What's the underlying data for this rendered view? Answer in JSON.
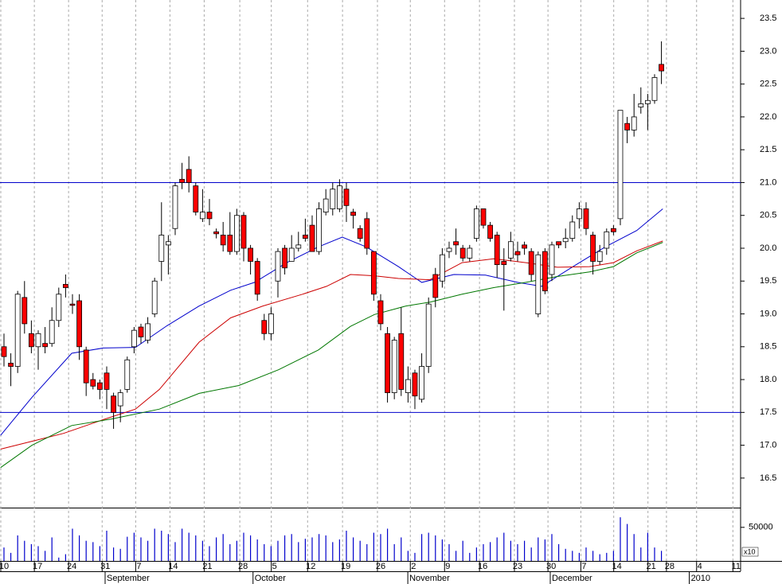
{
  "chart_data": [
    {
      "type": "candlestick",
      "x": [
        0,
        1,
        2,
        3,
        4,
        5,
        6,
        7,
        8,
        9,
        10,
        11,
        12,
        13,
        14,
        15,
        16,
        17,
        18,
        19,
        20,
        21,
        22,
        23,
        24,
        25,
        26,
        27,
        28,
        29,
        30,
        31,
        32,
        33,
        34,
        35,
        36,
        37,
        38,
        39,
        40,
        41,
        42,
        43,
        44,
        45,
        46,
        47,
        48,
        49,
        50,
        51,
        52,
        53,
        54,
        55,
        56,
        57,
        58,
        59,
        60,
        61,
        62,
        63,
        64,
        65,
        66,
        67,
        68,
        69,
        70,
        71,
        72,
        73,
        74,
        75,
        76,
        77,
        78,
        79,
        80,
        81,
        82,
        83,
        84,
        85,
        86,
        87,
        88,
        89,
        90,
        91,
        92,
        93,
        94,
        95,
        96
      ],
      "open": [
        18.5,
        18.25,
        18.2,
        19.25,
        18.7,
        18.5,
        18.55,
        18.55,
        18.9,
        19.45,
        19.15,
        19.2,
        18.45,
        18.0,
        17.95,
        18.1,
        17.75,
        17.6,
        17.85,
        18.5,
        18.8,
        18.6,
        19.0,
        19.8,
        20.05,
        20.3,
        21.05,
        21.2,
        20.95,
        20.45,
        20.55,
        20.25,
        20.2,
        20.2,
        19.95,
        20.5,
        20.0,
        19.8,
        18.9,
        18.7,
        19.5,
        20.0,
        19.8,
        20.0,
        20.2,
        20.35,
        19.95,
        20.55,
        20.6,
        20.6,
        20.9,
        20.55,
        20.3,
        20.45,
        19.95,
        19.2,
        18.7,
        17.8,
        18.7,
        17.8,
        18.1,
        17.7,
        18.2,
        19.6,
        19.5,
        19.95,
        20.1,
        20.0,
        19.85,
        20.15,
        20.6,
        20.35,
        20.2,
        19.8,
        19.85,
        19.95,
        20.05,
        19.95,
        19.0,
        19.95,
        19.6,
        20.1,
        20.1,
        20.15,
        20.45,
        20.6,
        20.2,
        19.8,
        20.0,
        20.3,
        20.45,
        21.9,
        21.8,
        22.15,
        22.2,
        22.25,
        22.8
      ],
      "high": [
        18.7,
        18.4,
        19.35,
        19.5,
        18.9,
        18.75,
        18.8,
        19.1,
        19.4,
        19.6,
        19.3,
        19.3,
        18.5,
        18.1,
        18.0,
        18.2,
        17.8,
        17.85,
        18.35,
        18.8,
        18.85,
        18.95,
        19.55,
        20.7,
        20.2,
        21.0,
        21.3,
        21.4,
        21.0,
        20.9,
        20.75,
        20.3,
        20.4,
        20.55,
        20.6,
        20.55,
        20.05,
        19.85,
        19.0,
        19.1,
        20.0,
        20.05,
        20.2,
        20.25,
        20.45,
        20.5,
        20.7,
        20.9,
        21.0,
        21.05,
        21.0,
        20.6,
        20.35,
        20.55,
        19.95,
        19.3,
        18.8,
        18.65,
        19.1,
        18.2,
        18.15,
        18.4,
        19.25,
        19.7,
        20.0,
        20.1,
        20.3,
        20.05,
        20.05,
        20.65,
        20.6,
        20.4,
        20.25,
        20.0,
        20.25,
        20.1,
        20.1,
        20.0,
        19.95,
        20.0,
        20.1,
        20.1,
        20.3,
        20.5,
        20.7,
        20.7,
        20.25,
        20.05,
        20.3,
        20.35,
        22.1,
        22.0,
        22.35,
        22.45,
        22.35,
        22.65,
        23.15
      ],
      "low": [
        18.2,
        17.9,
        18.1,
        18.7,
        18.4,
        18.15,
        18.4,
        18.5,
        18.8,
        19.25,
        19.0,
        18.3,
        17.75,
        17.85,
        17.7,
        17.55,
        17.25,
        17.35,
        17.8,
        18.4,
        18.55,
        18.55,
        18.95,
        19.5,
        19.6,
        20.2,
        20.9,
        20.85,
        20.5,
        20.4,
        20.35,
        20.15,
        19.95,
        19.9,
        19.9,
        19.8,
        19.6,
        19.2,
        18.6,
        18.6,
        19.25,
        19.6,
        19.8,
        19.95,
        20.1,
        19.95,
        19.9,
        20.5,
        20.5,
        20.55,
        20.4,
        20.3,
        20.1,
        19.9,
        19.2,
        18.75,
        17.65,
        17.7,
        17.75,
        17.65,
        17.55,
        17.65,
        18.1,
        19.1,
        19.4,
        19.85,
        19.9,
        19.8,
        19.8,
        20.1,
        20.3,
        20.1,
        19.55,
        19.05,
        19.8,
        19.8,
        19.9,
        19.5,
        18.95,
        19.3,
        19.5,
        20.0,
        20.0,
        20.1,
        20.3,
        20.2,
        19.6,
        19.75,
        19.9,
        20.2,
        20.35,
        21.6,
        21.7,
        22.05,
        21.8,
        22.2,
        22.5
      ],
      "close": [
        18.35,
        18.2,
        19.3,
        18.85,
        18.5,
        18.7,
        18.5,
        18.9,
        19.3,
        19.4,
        19.13,
        18.5,
        17.95,
        17.9,
        17.85,
        17.85,
        17.5,
        17.8,
        18.3,
        18.75,
        18.65,
        18.85,
        19.5,
        20.2,
        20.1,
        20.95,
        21.0,
        21.0,
        20.55,
        20.55,
        20.45,
        20.22,
        20.05,
        19.95,
        20.5,
        20.0,
        19.8,
        19.3,
        18.7,
        19.0,
        19.95,
        19.7,
        20.0,
        20.05,
        20.15,
        19.95,
        20.6,
        20.75,
        20.9,
        20.95,
        20.65,
        20.5,
        20.15,
        20.0,
        19.3,
        18.85,
        17.8,
        18.6,
        17.85,
        18.0,
        17.75,
        18.2,
        19.15,
        19.25,
        19.9,
        20.0,
        20.05,
        19.85,
        20.0,
        20.6,
        20.35,
        20.15,
        19.75,
        19.75,
        20.1,
        19.9,
        20.0,
        19.6,
        19.9,
        19.35,
        20.05,
        20.05,
        20.15,
        20.4,
        20.6,
        20.3,
        19.8,
        19.95,
        20.25,
        20.25,
        22.1,
        21.8,
        22.0,
        22.2,
        22.25,
        22.6,
        22.7
      ],
      "up_color": "#ffffff",
      "down_color": "#ff0000",
      "lines": [
        {
          "color": "#0000cc",
          "x": [
            -0.5,
            4.1,
            9.9,
            14.5,
            19.2,
            23.8,
            28.5,
            33.1,
            36.6,
            41.3,
            45.9,
            49.4,
            52.9,
            57.6,
            61,
            65.7,
            70.3,
            75,
            78.5,
            83.1,
            87.8,
            92.4,
            96.2
          ],
          "values": [
            17.15,
            17.73,
            18.4,
            18.48,
            18.49,
            18.82,
            19.12,
            19.36,
            19.48,
            19.78,
            20.02,
            20.17,
            20.02,
            19.72,
            19.48,
            19.6,
            19.59,
            19.48,
            19.42,
            19.72,
            20.02,
            20.27,
            20.6
          ]
        },
        {
          "color": "#cc0000",
          "x": [
            -0.5,
            4.1,
            8.7,
            14.5,
            19.2,
            22.7,
            28.5,
            33.1,
            37.8,
            43.6,
            47.1,
            50.6,
            54.1,
            57.6,
            62.2,
            66.9,
            71.5,
            76.2,
            80.8,
            85.5,
            89,
            92.4,
            96.2
          ],
          "values": [
            16.94,
            17.06,
            17.18,
            17.39,
            17.55,
            17.85,
            18.57,
            18.94,
            19.12,
            19.3,
            19.42,
            19.6,
            19.58,
            19.54,
            19.52,
            19.78,
            19.84,
            19.78,
            19.71,
            19.72,
            19.78,
            19.96,
            20.11
          ]
        },
        {
          "color": "#007700",
          "x": [
            -0.5,
            4.1,
            9.9,
            15.7,
            22.7,
            28.5,
            34.3,
            40.1,
            45.9,
            50.6,
            54.1,
            58.7,
            62.2,
            66.9,
            71.5,
            76.2,
            80.8,
            85.5,
            89,
            92.4,
            96.2
          ],
          "values": [
            16.66,
            17.0,
            17.3,
            17.4,
            17.55,
            17.79,
            17.91,
            18.15,
            18.45,
            18.81,
            18.99,
            19.12,
            19.18,
            19.3,
            19.4,
            19.48,
            19.57,
            19.64,
            19.72,
            19.93,
            20.09
          ]
        }
      ],
      "hlines": [
        21.0,
        17.5
      ],
      "hline_color": "#0000cc",
      "xlim": [
        -0.58,
        107.56
      ],
      "ylim": [
        16.05,
        23.78
      ],
      "yticks": [
        16.5,
        {
          "value": 17,
          "label": "17.0"
        },
        17.5,
        {
          "value": 18,
          "label": "18.0"
        },
        18.5,
        {
          "value": 19,
          "label": "19.0"
        },
        19.5,
        {
          "value": 20,
          "label": "20.0"
        },
        20.5,
        {
          "value": 21,
          "label": "21.0"
        },
        21.5,
        {
          "value": 22,
          "label": "22.0"
        },
        22.5,
        {
          "value": 23,
          "label": "23.0"
        },
        23.5
      ]
    },
    {
      "type": "bar",
      "x": [
        0,
        1,
        2,
        3,
        4,
        5,
        6,
        7,
        8,
        9,
        10,
        11,
        12,
        13,
        14,
        15,
        16,
        17,
        18,
        19,
        20,
        21,
        22,
        23,
        24,
        25,
        26,
        27,
        28,
        29,
        30,
        31,
        32,
        33,
        34,
        35,
        36,
        37,
        38,
        39,
        40,
        41,
        42,
        43,
        44,
        45,
        46,
        47,
        48,
        49,
        50,
        51,
        52,
        53,
        54,
        55,
        56,
        57,
        58,
        59,
        60,
        61,
        62,
        63,
        64,
        65,
        66,
        67,
        68,
        69,
        70,
        71,
        72,
        73,
        74,
        75,
        76,
        77,
        78,
        79,
        80,
        81,
        82,
        83,
        84,
        85,
        86,
        87,
        88,
        89,
        90,
        91,
        92,
        93,
        94,
        95,
        96
      ],
      "values": [
        20000,
        12000,
        38000,
        30000,
        25000,
        22000,
        15000,
        35000,
        5000,
        10000,
        48000,
        38000,
        30000,
        28000,
        22000,
        45000,
        20000,
        18000,
        36000,
        42000,
        35000,
        30000,
        48000,
        45000,
        40000,
        28000,
        48000,
        42000,
        38000,
        30000,
        22000,
        35000,
        40000,
        25000,
        30000,
        42000,
        38000,
        32000,
        25000,
        22000,
        30000,
        38000,
        40000,
        28000,
        33000,
        35000,
        40000,
        38000,
        28000,
        32000,
        45000,
        35000,
        30000,
        25000,
        42000,
        40000,
        48000,
        25000,
        35000,
        15000,
        12000,
        40000,
        42000,
        38000,
        32000,
        25000,
        15000,
        30000,
        12000,
        20000,
        25000,
        28000,
        35000,
        42000,
        30000,
        25000,
        30000,
        20000,
        35000,
        32000,
        40000,
        25000,
        18000,
        15000,
        12000,
        20000,
        15000,
        10000,
        12000,
        15000,
        65000,
        55000,
        40000,
        20000,
        42000,
        20000,
        15000
      ],
      "color": "#0000cc",
      "ylim": [
        0,
        77000
      ],
      "yticks": [
        50000
      ],
      "y_multiplier": "x10",
      "xlim": [
        -0.58,
        107.56
      ],
      "xticks": [
        {
          "value": 0,
          "label": "10"
        },
        {
          "value": 4.9,
          "label": "17"
        },
        {
          "value": 9.9,
          "label": "24"
        },
        {
          "value": 14.8,
          "label": "31"
        },
        {
          "value": 19.7,
          "label": "7"
        },
        {
          "value": 24.7,
          "label": "14"
        },
        {
          "value": 29.7,
          "label": "21"
        },
        {
          "value": 34.9,
          "label": "28"
        },
        {
          "value": 39.5,
          "label": "5"
        },
        {
          "value": 44.8,
          "label": "12"
        },
        {
          "value": 49.9,
          "label": "19"
        },
        {
          "value": 55,
          "label": "26"
        },
        {
          "value": 59.8,
          "label": "2"
        },
        {
          "value": 64.8,
          "label": "9"
        },
        {
          "value": 69.9,
          "label": "16"
        },
        {
          "value": 75,
          "label": "23"
        },
        {
          "value": 79.9,
          "label": "30"
        },
        {
          "value": 84.7,
          "label": "7"
        },
        {
          "value": 89.5,
          "label": "14"
        },
        {
          "value": 94.5,
          "label": "21"
        },
        {
          "value": 97.2,
          "label": "28"
        },
        {
          "value": 101.6,
          "label": "4"
        },
        {
          "value": 106.9,
          "label": "11"
        }
      ],
      "months": [
        {
          "value": 15,
          "label": "September"
        },
        {
          "value": 36.6,
          "label": "October"
        },
        {
          "value": 59.2,
          "label": "November"
        },
        {
          "value": 80,
          "label": "December"
        },
        {
          "value": 100.3,
          "label": "2010"
        }
      ]
    }
  ]
}
